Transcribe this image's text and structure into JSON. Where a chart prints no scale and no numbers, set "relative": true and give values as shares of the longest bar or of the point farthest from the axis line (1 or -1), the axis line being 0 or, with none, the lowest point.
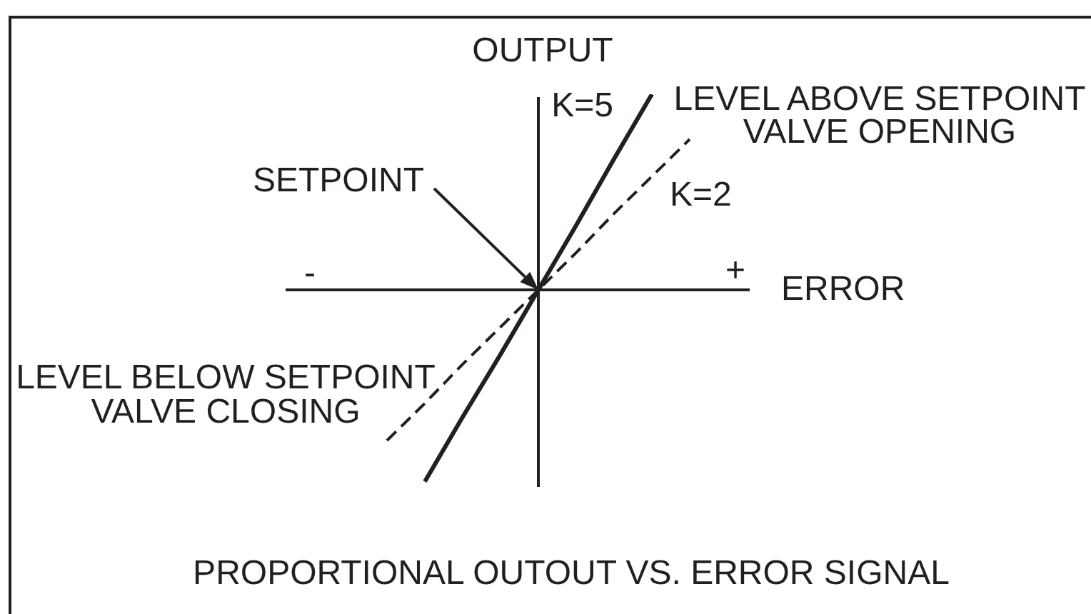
{
  "chart_data": {
    "type": "line",
    "title": "PROPORTIONAL OUTOUT VS. ERROR SIGNAL",
    "xlabel": "ERROR",
    "ylabel": "OUTPUT",
    "relative": true,
    "categories": [
      null,
      null,
      null,
      null,
      null,
      null,
      null,
      null,
      null
    ],
    "series": [
      {
        "name": "K=5",
        "color": "#231f20",
        "line_style": "solid",
        "values": [
          null,
          -0.98,
          -0.65,
          -0.33,
          0,
          0.33,
          0.67,
          1,
          null
        ]
      },
      {
        "name": "K=2",
        "color": "#231f20",
        "line_style": "dashed",
        "values": [
          -0.77,
          -0.58,
          -0.38,
          -0.19,
          0,
          0.19,
          0.39,
          0.58,
          0.77
        ]
      }
    ],
    "annotations": [
      "-",
      "+",
      "SETPOINT",
      "LEVEL ABOVE SETPOINT VALVE OPENING",
      "LEVEL BELOW SETPOINT VALVE CLOSING"
    ]
  }
}
